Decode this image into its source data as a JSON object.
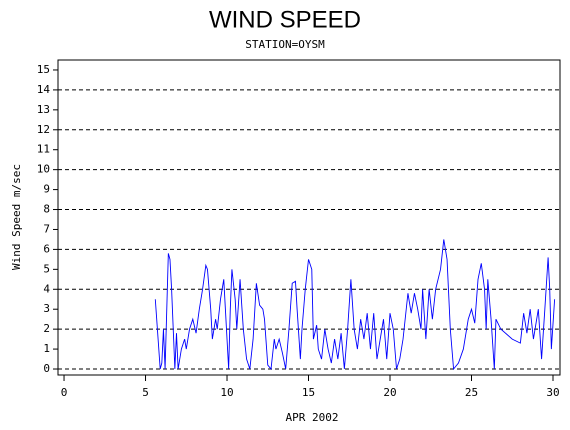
{
  "chart_data": {
    "type": "line",
    "title": "WIND SPEED",
    "subtitle": "STATION=OYSM",
    "x_label": "APR 2002",
    "y_label": "Wind Speed m/sec",
    "xlim": [
      -0.37,
      30.43
    ],
    "xticks": [
      0,
      5,
      10,
      15,
      20,
      25,
      30
    ],
    "ylim": [
      -0.3,
      15.5
    ],
    "yticks": [
      0,
      1,
      2,
      3,
      4,
      5,
      6,
      7,
      8,
      9,
      10,
      11,
      12,
      13,
      14,
      15
    ],
    "grid": true,
    "series": [
      {
        "name": "Wind Speed",
        "color": "#0000ff",
        "x": [
          5.6,
          5.9,
          6.0,
          6.1,
          6.2,
          6.4,
          6.5,
          6.6,
          6.8,
          6.9,
          7.0,
          7.2,
          7.4,
          7.5,
          7.7,
          7.9,
          8.1,
          8.3,
          8.5,
          8.7,
          8.8,
          9.0,
          9.1,
          9.3,
          9.4,
          9.6,
          9.8,
          9.9,
          10.0,
          10.1,
          10.2,
          10.3,
          10.5,
          10.6,
          10.8,
          11.0,
          11.2,
          11.4,
          11.6,
          11.8,
          12.0,
          12.2,
          12.3,
          12.5,
          12.7,
          12.9,
          13.0,
          13.2,
          13.4,
          13.6,
          13.8,
          14.0,
          14.2,
          14.3,
          14.5,
          14.6,
          14.8,
          15.0,
          15.2,
          15.3,
          15.5,
          15.6,
          15.8,
          16.0,
          16.2,
          16.4,
          16.6,
          16.8,
          17.0,
          17.2,
          17.4,
          17.6,
          17.8,
          18.0,
          18.2,
          18.4,
          18.6,
          18.8,
          19.0,
          19.2,
          19.4,
          19.6,
          19.8,
          20.0,
          20.2,
          20.4,
          20.6,
          20.8,
          21.1,
          21.3,
          21.5,
          21.7,
          21.9,
          22.0,
          22.2,
          22.4,
          22.6,
          22.8,
          23.1,
          23.3,
          23.5,
          23.7,
          23.9,
          24.2,
          24.5,
          24.8,
          25.0,
          25.2,
          25.4,
          25.6,
          25.8,
          25.9,
          26.0,
          26.2,
          26.4,
          26.5,
          26.8,
          27.5,
          28.0,
          28.2,
          28.4,
          28.6,
          28.8,
          29.1,
          29.3,
          29.5,
          29.7,
          29.8,
          29.9,
          30.1
        ],
        "values": [
          3.5,
          0,
          0.3,
          2,
          0,
          5.8,
          5.5,
          4,
          0,
          1.8,
          0,
          1,
          1.5,
          1,
          2,
          2.5,
          1.8,
          3,
          4,
          5.2,
          5,
          3,
          1.5,
          2.5,
          2,
          3.5,
          4.5,
          3,
          1.5,
          0,
          3,
          5,
          3.5,
          2,
          4.5,
          2,
          0.5,
          0,
          1.5,
          4.3,
          3.2,
          3,
          2.5,
          0.2,
          0,
          1.5,
          1,
          1.5,
          0.8,
          0,
          2,
          4.3,
          4.4,
          3,
          0.5,
          2,
          4,
          5.5,
          5,
          1.5,
          2.2,
          1,
          0.5,
          2,
          1,
          0.3,
          1.5,
          0.5,
          1.8,
          0,
          2,
          4.5,
          2,
          1,
          2.5,
          1.5,
          2.8,
          1,
          2.8,
          0.5,
          1.5,
          2.5,
          0.5,
          2.8,
          2,
          0,
          0.5,
          1.5,
          3.8,
          2.8,
          3.8,
          3,
          2,
          4,
          1.5,
          4,
          2.5,
          4,
          5,
          6.5,
          5.5,
          2,
          0,
          0.3,
          1,
          2.5,
          3,
          2.3,
          4.5,
          5.3,
          4,
          2,
          4.5,
          2.5,
          0,
          2.5,
          2,
          1.5,
          1.3,
          2.8,
          1.8,
          3,
          1.5,
          3,
          0.5,
          3,
          5.6,
          4,
          1,
          3.5
        ]
      }
    ]
  }
}
